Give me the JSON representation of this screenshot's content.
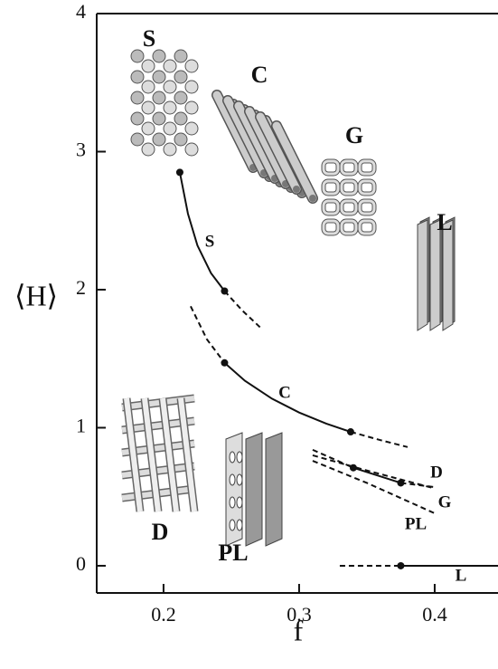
{
  "chart_data": {
    "type": "line",
    "x_label": "f",
    "y_label": "⟨H⟩",
    "xlim": [
      0.1507,
      0.4467
    ],
    "ylim": [
      -0.197,
      4.0
    ],
    "xticks": [
      0.2,
      0.3,
      0.4
    ],
    "yticks": [
      0,
      1,
      2,
      3,
      4
    ],
    "color": "#111111",
    "series": [
      {
        "name": "S",
        "solid": {
          "x": [
            0.212,
            0.218,
            0.225,
            0.235,
            0.245
          ],
          "values": [
            2.85,
            2.55,
            2.32,
            2.12,
            1.99
          ]
        },
        "dashed": {
          "x": [
            0.245,
            0.258,
            0.272
          ],
          "values": [
            1.99,
            1.85,
            1.72
          ]
        },
        "points": {
          "x": [
            0.212,
            0.245
          ],
          "values": [
            2.85,
            1.99
          ]
        }
      },
      {
        "name": "C",
        "solid": {
          "x": [
            0.245,
            0.26,
            0.28,
            0.3,
            0.32,
            0.338
          ],
          "values": [
            1.47,
            1.34,
            1.21,
            1.11,
            1.03,
            0.97
          ]
        },
        "dashed": {
          "x": [
            0.22,
            0.232,
            0.245
          ],
          "values": [
            1.88,
            1.64,
            1.47
          ]
        },
        "dashed2": {
          "x": [
            0.338,
            0.36,
            0.38
          ],
          "values": [
            0.97,
            0.91,
            0.86
          ]
        },
        "points": {
          "x": [
            0.245,
            0.338
          ],
          "values": [
            1.47,
            0.97
          ]
        }
      },
      {
        "name": "D",
        "solid": {
          "x": [
            0.34,
            0.375
          ],
          "values": [
            0.71,
            0.6
          ]
        },
        "dashed": {
          "x": [
            0.31,
            0.34
          ],
          "values": [
            0.84,
            0.71
          ]
        },
        "dashed2": {
          "x": [
            0.375,
            0.4
          ],
          "values": [
            0.6,
            0.57
          ]
        },
        "points": {
          "x": [
            0.34,
            0.375
          ],
          "values": [
            0.71,
            0.6
          ]
        }
      },
      {
        "name": "G",
        "dashed": {
          "x": [
            0.31,
            0.35,
            0.4
          ],
          "values": [
            0.8,
            0.69,
            0.56
          ]
        }
      },
      {
        "name": "PL",
        "dashed": {
          "x": [
            0.31,
            0.35,
            0.4
          ],
          "values": [
            0.76,
            0.6,
            0.38
          ]
        }
      },
      {
        "name": "L",
        "solid": {
          "x": [
            0.375,
            0.4467
          ],
          "values": [
            0,
            0
          ]
        },
        "dashed": {
          "x": [
            0.33,
            0.375
          ],
          "values": [
            0,
            0
          ]
        },
        "points": {
          "x": [
            0.375
          ],
          "values": [
            0
          ]
        }
      }
    ],
    "structures": [
      "S",
      "C",
      "G",
      "L",
      "D",
      "PL"
    ]
  }
}
